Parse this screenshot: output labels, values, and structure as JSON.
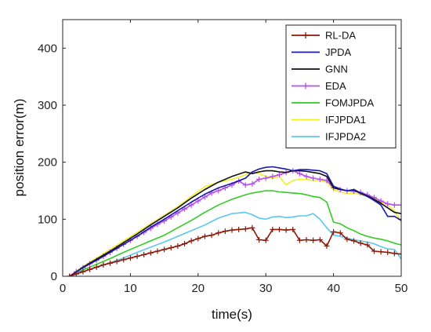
{
  "chart_data": {
    "type": "line",
    "xlabel": "time(s)",
    "ylabel": "position error(m)",
    "xlim": [
      0,
      50
    ],
    "ylim": [
      0,
      450
    ],
    "xticks": [
      0,
      10,
      20,
      30,
      40,
      50
    ],
    "yticks": [
      0,
      100,
      200,
      300,
      400
    ],
    "grid": false,
    "legend_position": "top-right",
    "series": [
      {
        "name": "RL-DA",
        "color": "#8b1a0a",
        "marker": "plus",
        "x": [
          1,
          2,
          3,
          4,
          5,
          6,
          7,
          8,
          9,
          10,
          11,
          12,
          13,
          14,
          15,
          16,
          17,
          18,
          19,
          20,
          21,
          22,
          23,
          24,
          25,
          26,
          27,
          28,
          29,
          30,
          31,
          32,
          33,
          34,
          35,
          36,
          37,
          38,
          39,
          40,
          41,
          42,
          43,
          44,
          45,
          46,
          47,
          48,
          49,
          50
        ],
        "y": [
          0,
          4,
          8,
          12,
          16,
          20,
          23,
          26,
          29,
          32,
          35,
          38,
          41,
          44,
          47,
          50,
          53,
          57,
          62,
          66,
          70,
          72,
          76,
          79,
          81,
          82,
          83,
          85,
          64,
          63,
          82,
          82,
          81,
          82,
          63,
          64,
          63,
          64,
          53,
          78,
          76,
          65,
          62,
          58,
          55,
          44,
          43,
          42,
          40,
          39
        ]
      },
      {
        "name": "JPDA",
        "color": "#1a1aa8",
        "x": [
          1,
          3,
          5,
          7,
          9,
          11,
          13,
          15,
          17,
          19,
          21,
          23,
          25,
          27,
          28,
          29,
          30,
          31,
          32,
          33,
          34,
          35,
          36,
          37,
          38,
          39,
          40,
          41,
          42,
          43,
          44,
          45,
          46,
          47,
          48,
          49,
          50
        ],
        "y": [
          0,
          15,
          28,
          42,
          56,
          70,
          86,
          100,
          115,
          130,
          144,
          155,
          163,
          172,
          183,
          188,
          191,
          192,
          190,
          188,
          185,
          187,
          187,
          186,
          185,
          180,
          158,
          153,
          150,
          151,
          145,
          140,
          133,
          125,
          105,
          105,
          98
        ]
      },
      {
        "name": "GNN",
        "color": "#111111",
        "x": [
          1,
          3,
          5,
          7,
          9,
          11,
          13,
          15,
          17,
          19,
          21,
          23,
          25,
          27,
          28,
          29,
          30,
          31,
          32,
          33,
          34,
          35,
          36,
          37,
          38,
          39,
          40,
          41,
          42,
          43,
          44,
          45,
          46,
          47,
          48,
          49,
          50
        ],
        "y": [
          0,
          16,
          30,
          44,
          59,
          74,
          90,
          105,
          120,
          137,
          152,
          165,
          175,
          183,
          180,
          183,
          185,
          185,
          183,
          182,
          185,
          185,
          184,
          182,
          180,
          175,
          155,
          152,
          150,
          152,
          146,
          141,
          135,
          128,
          120,
          112,
          110
        ]
      },
      {
        "name": "EDA",
        "color": "#b84ef0",
        "marker": "plus",
        "x": [
          1,
          2,
          3,
          4,
          5,
          6,
          7,
          8,
          9,
          10,
          11,
          12,
          13,
          14,
          15,
          16,
          17,
          18,
          19,
          20,
          21,
          22,
          23,
          24,
          25,
          26,
          27,
          28,
          29,
          30,
          31,
          32,
          33,
          34,
          35,
          36,
          37,
          38,
          39,
          40,
          41,
          42,
          43,
          44,
          45,
          46,
          47,
          48,
          49,
          50
        ],
        "y": [
          0,
          8,
          15,
          22,
          28,
          35,
          42,
          49,
          56,
          63,
          70,
          77,
          84,
          91,
          97,
          104,
          111,
          118,
          125,
          132,
          139,
          146,
          150,
          155,
          160,
          167,
          160,
          162,
          170,
          172,
          175,
          178,
          182,
          185,
          180,
          175,
          172,
          170,
          168,
          155,
          152,
          150,
          149,
          147,
          143,
          138,
          132,
          127,
          125,
          125
        ]
      },
      {
        "name": "FOMJPDA",
        "color": "#33cc22",
        "x": [
          1,
          3,
          5,
          7,
          9,
          11,
          13,
          15,
          17,
          19,
          21,
          23,
          25,
          27,
          28,
          29,
          30,
          31,
          32,
          33,
          34,
          35,
          36,
          37,
          38,
          39,
          40,
          41,
          42,
          43,
          44,
          45,
          46,
          47,
          48,
          49,
          50
        ],
        "y": [
          0,
          11,
          21,
          31,
          42,
          52,
          62,
          72,
          85,
          98,
          112,
          125,
          135,
          143,
          146,
          148,
          150,
          150,
          148,
          147,
          146,
          145,
          143,
          140,
          138,
          130,
          95,
          92,
          85,
          80,
          74,
          70,
          67,
          65,
          62,
          58,
          55
        ]
      },
      {
        "name": "IFJPDA1",
        "color": "#f2f01e",
        "x": [
          1,
          3,
          5,
          7,
          9,
          11,
          13,
          15,
          17,
          19,
          21,
          23,
          25,
          27,
          28,
          29,
          30,
          31,
          32,
          33,
          34,
          35,
          36,
          37,
          38,
          39,
          40,
          41,
          42,
          43,
          44,
          45,
          46,
          47,
          48,
          49,
          50
        ],
        "y": [
          0,
          17,
          32,
          47,
          62,
          77,
          92,
          107,
          122,
          140,
          157,
          165,
          170,
          178,
          183,
          180,
          175,
          172,
          175,
          160,
          168,
          170,
          170,
          168,
          168,
          165,
          152,
          148,
          145,
          146,
          143,
          140,
          135,
          130,
          125,
          115,
          95
        ]
      },
      {
        "name": "IFJPDA2",
        "color": "#5bc8ee",
        "x": [
          1,
          3,
          5,
          7,
          9,
          11,
          13,
          15,
          17,
          19,
          21,
          23,
          25,
          27,
          28,
          29,
          30,
          31,
          32,
          33,
          34,
          35,
          36,
          37,
          38,
          39,
          40,
          41,
          42,
          43,
          44,
          45,
          46,
          47,
          48,
          49,
          50
        ],
        "y": [
          0,
          8,
          16,
          24,
          32,
          42,
          51,
          60,
          70,
          80,
          90,
          102,
          110,
          112,
          108,
          102,
          100,
          104,
          105,
          103,
          104,
          106,
          106,
          110,
          100,
          85,
          72,
          70,
          67,
          64,
          62,
          60,
          57,
          52,
          48,
          47,
          30
        ]
      }
    ]
  }
}
